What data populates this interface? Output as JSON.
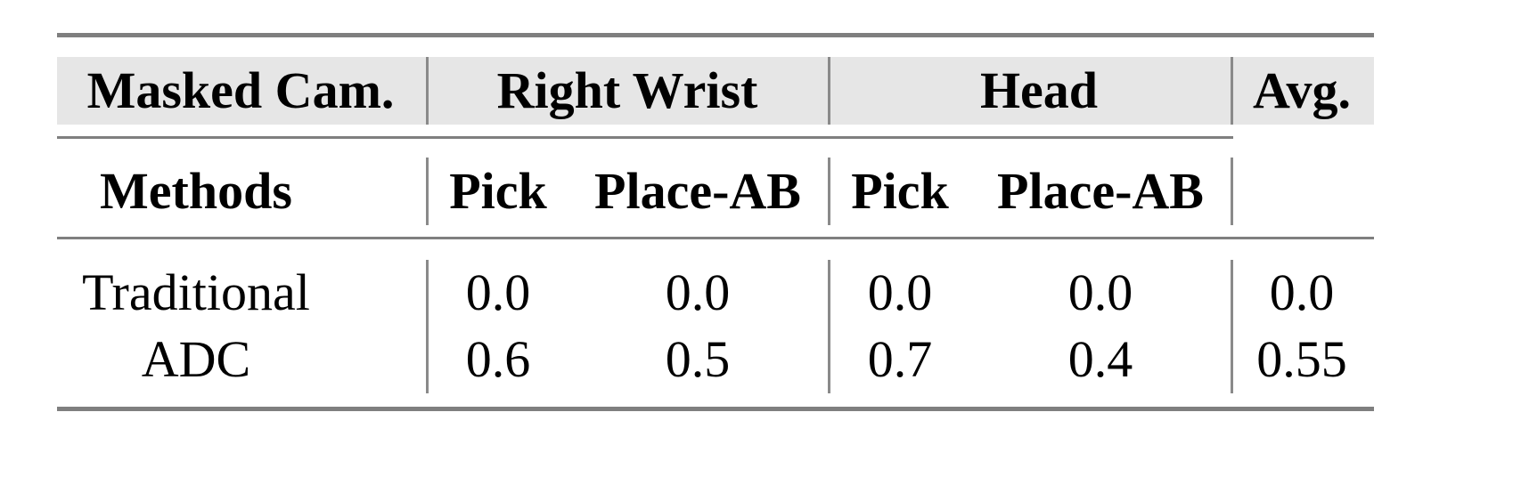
{
  "header": {
    "masked_cam": "Masked Cam.",
    "groups": [
      "Right Wrist",
      "Head"
    ],
    "avg": "Avg.",
    "methods": "Methods",
    "subcols": [
      "Pick",
      "Place-AB",
      "Pick",
      "Place-AB"
    ]
  },
  "rows": [
    {
      "method": "Traditional",
      "values": [
        "0.0",
        "0.0",
        "0.0",
        "0.0",
        "0.0"
      ]
    },
    {
      "method": "ADC",
      "values": [
        "0.6",
        "0.5",
        "0.7",
        "0.4",
        "0.55"
      ]
    }
  ],
  "colors": {
    "header_bg": "#e6e6e6",
    "rule": "#7f7f7f"
  }
}
